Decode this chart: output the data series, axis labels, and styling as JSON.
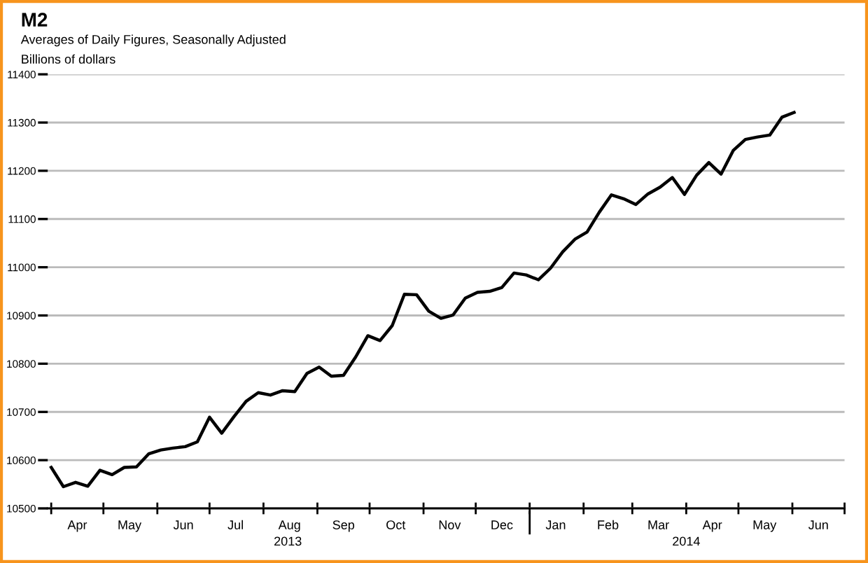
{
  "chart_data": {
    "type": "line",
    "title": "M2",
    "subtitle": "Averages of Daily Figures, Seasonally Adjusted",
    "ylabel": "Billions of dollars",
    "x": [
      "2013-04-01",
      "2013-04-08",
      "2013-04-15",
      "2013-04-22",
      "2013-04-29",
      "2013-05-06",
      "2013-05-13",
      "2013-05-20",
      "2013-05-27",
      "2013-06-03",
      "2013-06-10",
      "2013-06-17",
      "2013-06-24",
      "2013-07-01",
      "2013-07-08",
      "2013-07-15",
      "2013-07-22",
      "2013-07-29",
      "2013-08-05",
      "2013-08-12",
      "2013-08-19",
      "2013-08-26",
      "2013-09-02",
      "2013-09-09",
      "2013-09-16",
      "2013-09-23",
      "2013-09-30",
      "2013-10-07",
      "2013-10-14",
      "2013-10-21",
      "2013-10-28",
      "2013-11-04",
      "2013-11-11",
      "2013-11-18",
      "2013-11-25",
      "2013-12-02",
      "2013-12-09",
      "2013-12-16",
      "2013-12-23",
      "2013-12-30",
      "2014-01-06",
      "2014-01-13",
      "2014-01-20",
      "2014-01-27",
      "2014-02-03",
      "2014-02-10",
      "2014-02-17",
      "2014-02-24",
      "2014-03-03",
      "2014-03-10",
      "2014-03-17",
      "2014-03-24",
      "2014-03-31",
      "2014-04-07",
      "2014-04-14",
      "2014-04-21",
      "2014-04-28",
      "2014-05-05",
      "2014-05-12",
      "2014-05-19",
      "2014-05-26",
      "2014-06-02"
    ],
    "series": [
      {
        "color": "#000000",
        "values": [
          10585,
          10545,
          10554,
          10546,
          10579,
          10570,
          10585,
          10586,
          10613,
          10621,
          10625,
          10628,
          10638,
          10689,
          10656,
          10690,
          10722,
          10740,
          10735,
          10744,
          10742,
          10780,
          10793,
          10774,
          10776,
          10814,
          10858,
          10848,
          10879,
          10944,
          10943,
          10909,
          10894,
          10901,
          10936,
          10948,
          10950,
          10958,
          10988,
          10984,
          10974,
          10998,
          11032,
          11058,
          11073,
          11114,
          11150,
          11142,
          11130,
          11152,
          11166,
          11186,
          11151,
          11191,
          11217,
          11193,
          11242,
          11265,
          11270,
          11274,
          11311,
          11321
        ]
      }
    ],
    "xlim": [
      "2013-03-30",
      "2014-07-01"
    ],
    "xticks": [
      {
        "value": "2013-04-01",
        "label": null
      },
      {
        "value": "2013-04-16",
        "label": "Apr"
      },
      {
        "value": "2013-05-01",
        "label": null
      },
      {
        "value": "2013-05-16",
        "label": "May"
      },
      {
        "value": "2013-06-01",
        "label": null
      },
      {
        "value": "2013-06-16",
        "label": "Jun"
      },
      {
        "value": "2013-07-01",
        "label": null
      },
      {
        "value": "2013-07-16",
        "label": "Jul"
      },
      {
        "value": "2013-08-01",
        "label": null
      },
      {
        "value": "2013-08-16",
        "label": "Aug"
      },
      {
        "value": "2013-09-01",
        "label": null
      },
      {
        "value": "2013-09-16",
        "label": "Sep"
      },
      {
        "value": "2013-10-01",
        "label": null
      },
      {
        "value": "2013-10-16",
        "label": "Oct"
      },
      {
        "value": "2013-11-01",
        "label": null
      },
      {
        "value": "2013-11-16",
        "label": "Nov"
      },
      {
        "value": "2013-12-01",
        "label": null
      },
      {
        "value": "2013-12-16",
        "label": "Dec"
      },
      {
        "value": "2014-01-01",
        "label": null
      },
      {
        "value": "2014-01-16",
        "label": "Jan"
      },
      {
        "value": "2014-02-01",
        "label": null
      },
      {
        "value": "2014-02-15",
        "label": "Feb"
      },
      {
        "value": "2014-03-01",
        "label": null
      },
      {
        "value": "2014-03-16",
        "label": "Mar"
      },
      {
        "value": "2014-04-01",
        "label": null
      },
      {
        "value": "2014-04-16",
        "label": "Apr"
      },
      {
        "value": "2014-05-01",
        "label": null
      },
      {
        "value": "2014-05-16",
        "label": "May"
      },
      {
        "value": "2014-06-01",
        "label": null
      },
      {
        "value": "2014-06-16",
        "label": "Jun"
      },
      {
        "value": "2014-07-01",
        "label": null
      }
    ],
    "x2lim": [
      "2013-03-30",
      "2014-07-01"
    ],
    "x2ticks": [
      {
        "value": "2013-08-15",
        "label": "2013"
      },
      {
        "value": "2014-01-01",
        "label": null
      },
      {
        "value": "2014-04-01",
        "label": "2014"
      }
    ],
    "ylim": [
      10500,
      11400
    ],
    "yticks": [
      10500,
      10600,
      10700,
      10800,
      10900,
      11000,
      11100,
      11200,
      11300,
      11400
    ],
    "grid": "y",
    "marker": "none",
    "line_style": "solid"
  }
}
